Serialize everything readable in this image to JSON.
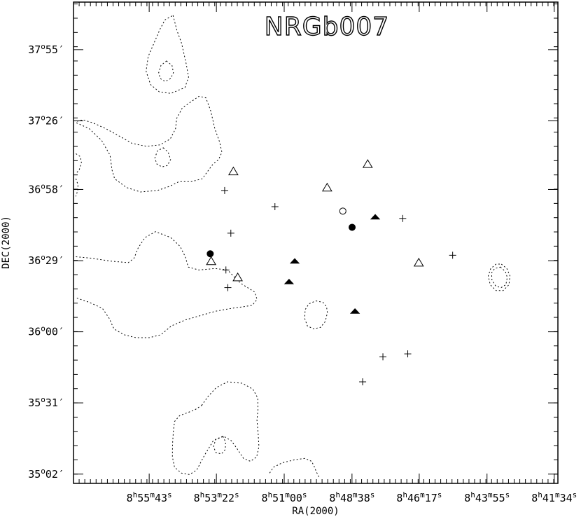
{
  "chart_data": {
    "type": "scatter",
    "title": "NRGb007",
    "xlabel": "RA(2000)",
    "ylabel": "DEC(2000)",
    "x_ticks": [
      {
        "ra_deg": 133.929,
        "h": "8",
        "m": "55",
        "s": "43"
      },
      {
        "ra_deg": 133.342,
        "h": "8",
        "m": "53",
        "s": "22"
      },
      {
        "ra_deg": 132.75,
        "h": "8",
        "m": "51",
        "s": "00"
      },
      {
        "ra_deg": 132.158,
        "h": "8",
        "m": "48",
        "s": "38"
      },
      {
        "ra_deg": 131.571,
        "h": "8",
        "m": "46",
        "s": "17"
      },
      {
        "ra_deg": 130.979,
        "h": "8",
        "m": "43",
        "s": "55"
      },
      {
        "ra_deg": 130.392,
        "h": "8",
        "m": "41",
        "s": "34"
      }
    ],
    "y_ticks": [
      {
        "dec_deg": 37.917,
        "d": "37",
        "m": "55",
        "label_suffix": "′"
      },
      {
        "dec_deg": 37.433,
        "d": "37",
        "m": "26",
        "label_suffix": "′"
      },
      {
        "dec_deg": 36.967,
        "d": "36",
        "m": "58",
        "label_suffix": "′"
      },
      {
        "dec_deg": 36.483,
        "d": "36",
        "m": "29",
        "label_suffix": "′"
      },
      {
        "dec_deg": 36.0,
        "d": "36",
        "m": "00",
        "label_suffix": "′"
      },
      {
        "dec_deg": 35.517,
        "d": "35",
        "m": "31",
        "label_suffix": "′"
      },
      {
        "dec_deg": 35.033,
        "d": "35",
        "m": "02",
        "label_suffix": "′"
      }
    ],
    "x_range_deg": [
      134.59,
      130.36
    ],
    "y_range_deg": [
      34.97,
      38.24
    ],
    "grid": false,
    "legend": "none",
    "series": [
      {
        "marker": "open-triangle",
        "points": [
          [
            133.194,
            37.09
          ],
          [
            132.375,
            36.98
          ],
          [
            132.021,
            37.14
          ],
          [
            133.388,
            36.48
          ],
          [
            133.156,
            36.37
          ],
          [
            131.575,
            36.47
          ]
        ]
      },
      {
        "marker": "filled-triangle",
        "points": [
          [
            132.658,
            36.48
          ],
          [
            132.708,
            36.34
          ],
          [
            131.955,
            36.78
          ],
          [
            132.132,
            36.14
          ]
        ]
      },
      {
        "marker": "filled-circle",
        "points": [
          [
            133.396,
            36.53
          ],
          [
            132.157,
            36.71
          ]
        ]
      },
      {
        "marker": "open-circle",
        "points": [
          [
            132.238,
            36.82
          ]
        ]
      },
      {
        "marker": "cross",
        "points": [
          [
            133.27,
            36.96
          ],
          [
            132.831,
            36.85
          ],
          [
            131.715,
            36.77
          ],
          [
            131.279,
            36.52
          ],
          [
            133.216,
            36.67
          ],
          [
            133.259,
            36.42
          ],
          [
            133.242,
            36.3
          ],
          [
            131.888,
            35.83
          ],
          [
            131.671,
            35.85
          ],
          [
            132.065,
            35.66
          ]
        ]
      }
    ],
    "contours": [
      {
        "kind": "closed",
        "path": [
          [
            133.721,
            38.15
          ],
          [
            133.688,
            38.05
          ],
          [
            133.646,
            37.96
          ],
          [
            133.608,
            37.83
          ],
          [
            133.585,
            37.73
          ],
          [
            133.617,
            37.66
          ],
          [
            133.738,
            37.62
          ],
          [
            133.84,
            37.63
          ],
          [
            133.917,
            37.68
          ],
          [
            133.956,
            37.77
          ],
          [
            133.938,
            37.87
          ],
          [
            133.882,
            37.97
          ],
          [
            133.832,
            38.06
          ],
          [
            133.79,
            38.12
          ]
        ]
      },
      {
        "kind": "closed",
        "path": [
          [
            133.778,
            37.84
          ],
          [
            133.73,
            37.81
          ],
          [
            133.718,
            37.76
          ],
          [
            133.742,
            37.72
          ],
          [
            133.79,
            37.7
          ],
          [
            133.832,
            37.72
          ],
          [
            133.846,
            37.76
          ],
          [
            133.826,
            37.81
          ]
        ]
      },
      {
        "kind": "open",
        "path": [
          [
            134.565,
            37.42
          ],
          [
            134.452,
            37.38
          ],
          [
            134.344,
            37.3
          ],
          [
            134.271,
            37.2
          ],
          [
            134.254,
            37.1
          ],
          [
            134.231,
            37.04
          ],
          [
            134.127,
            36.98
          ],
          [
            134.005,
            36.95
          ],
          [
            133.857,
            36.96
          ],
          [
            133.745,
            36.99
          ],
          [
            133.67,
            37.02
          ],
          [
            133.563,
            37.02
          ],
          [
            133.465,
            37.04
          ],
          [
            133.419,
            37.09
          ],
          [
            133.371,
            37.14
          ],
          [
            133.323,
            37.17
          ],
          [
            133.294,
            37.22
          ],
          [
            133.314,
            37.29
          ],
          [
            133.356,
            37.38
          ],
          [
            133.391,
            37.5
          ],
          [
            133.434,
            37.59
          ],
          [
            133.495,
            37.6
          ],
          [
            133.57,
            37.56
          ],
          [
            133.64,
            37.52
          ],
          [
            133.689,
            37.45
          ],
          [
            133.699,
            37.38
          ],
          [
            133.745,
            37.31
          ],
          [
            133.835,
            37.27
          ],
          [
            133.951,
            37.26
          ],
          [
            134.078,
            37.28
          ],
          [
            134.191,
            37.33
          ],
          [
            134.307,
            37.38
          ],
          [
            134.421,
            37.42
          ],
          [
            134.505,
            37.44
          ],
          [
            134.565,
            37.43
          ]
        ]
      },
      {
        "kind": "closed",
        "path": [
          [
            133.806,
            37.25
          ],
          [
            133.763,
            37.22
          ],
          [
            133.742,
            37.17
          ],
          [
            133.77,
            37.13
          ],
          [
            133.818,
            37.12
          ],
          [
            133.862,
            37.14
          ],
          [
            133.88,
            37.18
          ],
          [
            133.857,
            37.23
          ]
        ]
      },
      {
        "kind": "open",
        "path": [
          [
            134.569,
            37.21
          ],
          [
            134.53,
            37.19
          ],
          [
            134.521,
            37.15
          ],
          [
            134.54,
            37.1
          ],
          [
            134.563,
            37.08
          ]
        ]
      },
      {
        "kind": "open",
        "path": [
          [
            134.569,
            37.04
          ],
          [
            134.551,
            37.0
          ],
          [
            134.553,
            36.96
          ],
          [
            134.57,
            36.92
          ]
        ]
      },
      {
        "kind": "open",
        "path": [
          [
            134.569,
            36.51
          ],
          [
            134.432,
            36.5
          ],
          [
            134.262,
            36.48
          ],
          [
            134.112,
            36.47
          ],
          [
            134.061,
            36.5
          ],
          [
            134.025,
            36.57
          ],
          [
            133.966,
            36.64
          ],
          [
            133.874,
            36.68
          ],
          [
            133.741,
            36.64
          ],
          [
            133.659,
            36.58
          ],
          [
            133.614,
            36.51
          ],
          [
            133.588,
            36.44
          ],
          [
            133.496,
            36.42
          ],
          [
            133.352,
            36.43
          ],
          [
            133.244,
            36.42
          ],
          [
            133.195,
            36.38
          ],
          [
            133.131,
            36.33
          ],
          [
            133.008,
            36.27
          ],
          [
            132.987,
            36.22
          ],
          [
            133.028,
            36.18
          ],
          [
            133.109,
            36.17
          ],
          [
            133.205,
            36.16
          ],
          [
            133.348,
            36.14
          ],
          [
            133.482,
            36.11
          ],
          [
            133.615,
            36.08
          ],
          [
            133.735,
            36.04
          ],
          [
            133.826,
            35.98
          ],
          [
            133.929,
            35.96
          ],
          [
            134.044,
            35.96
          ],
          [
            134.15,
            35.98
          ],
          [
            134.237,
            36.02
          ],
          [
            134.277,
            36.09
          ],
          [
            134.338,
            36.16
          ],
          [
            134.452,
            36.2
          ],
          [
            134.565,
            36.23
          ]
        ]
      },
      {
        "kind": "closed",
        "path": [
          [
            132.474,
            36.21
          ],
          [
            132.412,
            36.2
          ],
          [
            132.38,
            36.17
          ],
          [
            132.373,
            36.13
          ],
          [
            132.391,
            36.07
          ],
          [
            132.433,
            36.03
          ],
          [
            132.494,
            36.02
          ],
          [
            132.548,
            36.04
          ],
          [
            132.571,
            36.09
          ],
          [
            132.567,
            36.15
          ],
          [
            132.534,
            36.19
          ]
        ]
      },
      {
        "kind": "closed",
        "path": [
          [
            130.854,
            36.46
          ],
          [
            130.806,
            36.43
          ],
          [
            130.779,
            36.38
          ],
          [
            130.787,
            36.32
          ],
          [
            130.838,
            36.28
          ],
          [
            130.9,
            36.28
          ],
          [
            130.951,
            36.32
          ],
          [
            130.968,
            36.38
          ],
          [
            130.946,
            36.43
          ],
          [
            130.899,
            36.46
          ]
        ]
      },
      {
        "kind": "closed",
        "path": [
          [
            130.862,
            36.44
          ],
          [
            130.819,
            36.41
          ],
          [
            130.802,
            36.37
          ],
          [
            130.814,
            36.32
          ],
          [
            130.856,
            36.3
          ],
          [
            130.902,
            36.31
          ],
          [
            130.936,
            36.35
          ],
          [
            130.939,
            36.4
          ],
          [
            130.912,
            36.43
          ]
        ]
      },
      {
        "kind": "closed",
        "path": [
          [
            133.471,
            35.5
          ],
          [
            133.416,
            35.56
          ],
          [
            133.344,
            35.62
          ],
          [
            133.245,
            35.66
          ],
          [
            133.115,
            35.65
          ],
          [
            133.024,
            35.61
          ],
          [
            132.981,
            35.55
          ],
          [
            132.979,
            35.47
          ],
          [
            132.988,
            35.4
          ],
          [
            132.977,
            35.3
          ],
          [
            132.971,
            35.22
          ],
          [
            132.99,
            35.15
          ],
          [
            133.044,
            35.12
          ],
          [
            133.106,
            35.14
          ],
          [
            133.165,
            35.21
          ],
          [
            133.212,
            35.26
          ],
          [
            133.279,
            35.29
          ],
          [
            133.369,
            35.26
          ],
          [
            133.447,
            35.16
          ],
          [
            133.515,
            35.06
          ],
          [
            133.578,
            35.03
          ],
          [
            133.648,
            35.04
          ],
          [
            133.708,
            35.08
          ],
          [
            133.726,
            35.15
          ],
          [
            133.725,
            35.24
          ],
          [
            133.717,
            35.33
          ],
          [
            133.708,
            35.39
          ],
          [
            133.664,
            35.43
          ],
          [
            133.596,
            35.45
          ],
          [
            133.53,
            35.47
          ]
        ]
      },
      {
        "kind": "closed",
        "path": [
          [
            133.285,
            35.29
          ],
          [
            133.262,
            35.25
          ],
          [
            133.265,
            35.2
          ],
          [
            133.298,
            35.17
          ],
          [
            133.347,
            35.18
          ],
          [
            133.367,
            35.22
          ],
          [
            133.348,
            35.27
          ]
        ]
      },
      {
        "kind": "open",
        "path": [
          [
            132.877,
            35.04
          ],
          [
            132.843,
            35.08
          ],
          [
            132.767,
            35.11
          ],
          [
            132.661,
            35.13
          ],
          [
            132.569,
            35.14
          ],
          [
            132.511,
            35.12
          ],
          [
            132.491,
            35.09
          ],
          [
            132.47,
            35.05
          ],
          [
            132.444,
            35.01
          ]
        ]
      }
    ]
  }
}
